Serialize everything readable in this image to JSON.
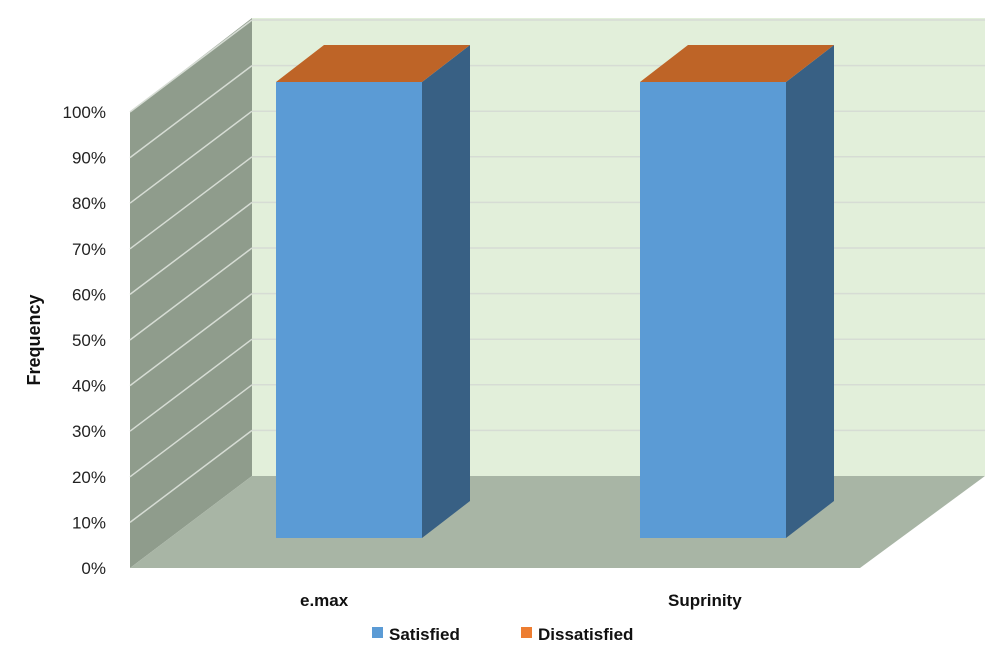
{
  "chart_data": {
    "type": "bar",
    "stacked": true,
    "three_d": true,
    "categories": [
      "e.max",
      "Suprinity"
    ],
    "series": [
      {
        "name": "Satisfied",
        "values": [
          100,
          100
        ],
        "color": "#5B9BD5"
      },
      {
        "name": "Dissatisfied",
        "values": [
          0,
          0
        ],
        "color": "#ED7D31"
      }
    ],
    "ylabel": "Frequency",
    "ylim": [
      0,
      100
    ],
    "yticks": [
      "0%",
      "10%",
      "20%",
      "30%",
      "40%",
      "50%",
      "60%",
      "70%",
      "80%",
      "90%",
      "100%"
    ],
    "grid": true,
    "legend": "bottom",
    "colors": {
      "back_wall": "#E2EFDA",
      "side_wall": "#8F9C8C",
      "floor": "#A8B5A5",
      "gridline": "#D6DCD4"
    }
  }
}
